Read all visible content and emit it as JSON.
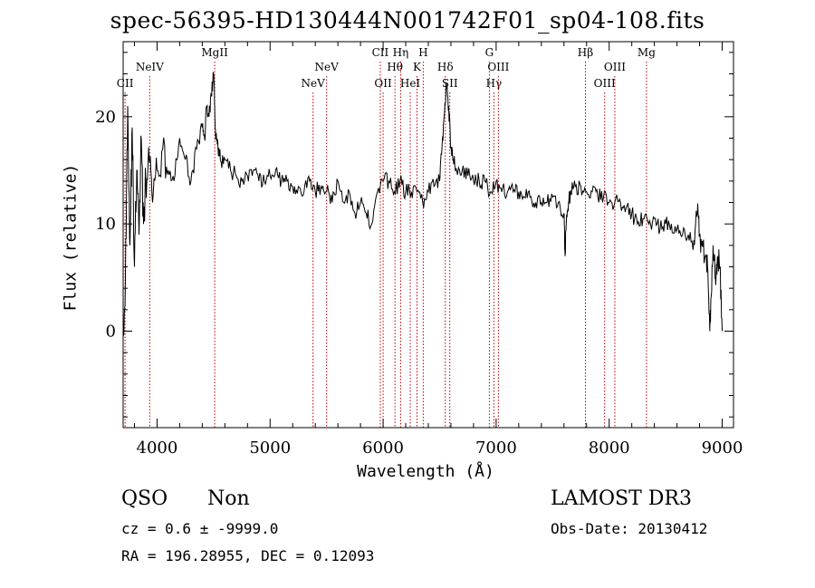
{
  "chart_data": {
    "type": "line",
    "title": "spec-56395-HD130444N001742F01_sp04-108.fits",
    "xlabel": "Wavelength (Å)",
    "ylabel": "Flux (relative)",
    "xlim": [
      3700,
      9100
    ],
    "ylim": [
      -9,
      27
    ],
    "xticks": [
      4000,
      5000,
      6000,
      7000,
      8000,
      9000
    ],
    "yticks": [
      0,
      10,
      20
    ],
    "series": [
      {
        "name": "spectrum",
        "x": [
          3700,
          3720,
          3740,
          3760,
          3780,
          3800,
          3820,
          3840,
          3860,
          3880,
          3900,
          3930,
          3960,
          4000,
          4050,
          4100,
          4150,
          4200,
          4250,
          4300,
          4350,
          4400,
          4420,
          4440,
          4460,
          4480,
          4500,
          4510,
          4520,
          4540,
          4560,
          4600,
          4650,
          4700,
          4750,
          4800,
          4850,
          4900,
          4950,
          5000,
          5050,
          5100,
          5150,
          5200,
          5250,
          5300,
          5350,
          5400,
          5450,
          5500,
          5550,
          5600,
          5650,
          5700,
          5750,
          5800,
          5850,
          5900,
          5950,
          6000,
          6050,
          6100,
          6150,
          6200,
          6250,
          6300,
          6350,
          6400,
          6450,
          6500,
          6520,
          6540,
          6560,
          6580,
          6600,
          6620,
          6650,
          6700,
          6750,
          6800,
          6850,
          6900,
          6950,
          7000,
          7050,
          7100,
          7150,
          7200,
          7250,
          7300,
          7350,
          7400,
          7450,
          7500,
          7550,
          7600,
          7610,
          7620,
          7640,
          7660,
          7700,
          7750,
          7800,
          7850,
          7900,
          7950,
          8000,
          8050,
          8100,
          8150,
          8200,
          8250,
          8300,
          8350,
          8400,
          8450,
          8500,
          8550,
          8600,
          8650,
          8700,
          8750,
          8780,
          8800,
          8820,
          8850,
          8870,
          8890,
          8900,
          8920,
          8940,
          8960,
          8980,
          9000
        ],
        "values": [
          0,
          5,
          21,
          8,
          19,
          6,
          15,
          9,
          18,
          10,
          14,
          16,
          12,
          15,
          17,
          15,
          14,
          18,
          16,
          14,
          17,
          19,
          18,
          21,
          20,
          22,
          24,
          21,
          18,
          17,
          16,
          16,
          15,
          14.5,
          14,
          14.5,
          15,
          14,
          14,
          14.5,
          15,
          14,
          14,
          13.5,
          13.5,
          13,
          14,
          13,
          13.5,
          13,
          12,
          14,
          12,
          13,
          11,
          12,
          11,
          10,
          13,
          14,
          14,
          13,
          14,
          13,
          13,
          13,
          12,
          13,
          13.5,
          14,
          17,
          20,
          23,
          21,
          17,
          16,
          15,
          15,
          14.5,
          14,
          14,
          14,
          13,
          14,
          13,
          13,
          13,
          13,
          12.5,
          12.5,
          12,
          12,
          12,
          12.5,
          12,
          11,
          7,
          10,
          12,
          13,
          13.5,
          13.5,
          13,
          13,
          12.5,
          12.5,
          12,
          12,
          12,
          11.5,
          11,
          10,
          10.5,
          10,
          10.5,
          9.5,
          10,
          10,
          9.5,
          9,
          9,
          8.5,
          11,
          9,
          8,
          7,
          6,
          0,
          3,
          8,
          5,
          7,
          6,
          0
        ]
      }
    ],
    "lines": [
      {
        "label": "CII",
        "x": 3717,
        "row": 3
      },
      {
        "label": "NeIV",
        "x": 3935,
        "row": 2
      },
      {
        "label": "MgII",
        "x": 4510,
        "row": 1
      },
      {
        "label": "NeV",
        "x": 5380,
        "row": 3
      },
      {
        "label": "NeV",
        "x": 5500,
        "row": 2
      },
      {
        "label": "CII",
        "x": 5975,
        "row": 1
      },
      {
        "label": "OII",
        "x": 6000,
        "row": 3
      },
      {
        "label": "Hθ",
        "x": 6105,
        "row": 2
      },
      {
        "label": "Hη",
        "x": 6155,
        "row": 1
      },
      {
        "label": "HeI",
        "x": 6240,
        "row": 3
      },
      {
        "label": "K",
        "x": 6300,
        "row": 2
      },
      {
        "label": "H",
        "x": 6355,
        "row": 1
      },
      {
        "label": "Hδ",
        "x": 6550,
        "row": 2
      },
      {
        "label": "SII",
        "x": 6590,
        "row": 3
      },
      {
        "label": "G",
        "x": 6940,
        "row": 1
      },
      {
        "label": "Hγ",
        "x": 6980,
        "row": 3
      },
      {
        "label": "OIII",
        "x": 7020,
        "row": 2
      },
      {
        "label": "Hβ",
        "x": 7790,
        "row": 1
      },
      {
        "label": "OIII",
        "x": 7960,
        "row": 3
      },
      {
        "label": "OIII",
        "x": 8050,
        "row": 2
      },
      {
        "label": "Mg",
        "x": 8330,
        "row": 1
      }
    ]
  },
  "info": {
    "class": "QSO",
    "subclass": "Non",
    "survey": "LAMOST DR3",
    "cz": "cz = 0.6 ± -9999.0",
    "obs_date": "Obs-Date: 20130412",
    "radec": "RA = 196.28955, DEC =    0.12093"
  }
}
